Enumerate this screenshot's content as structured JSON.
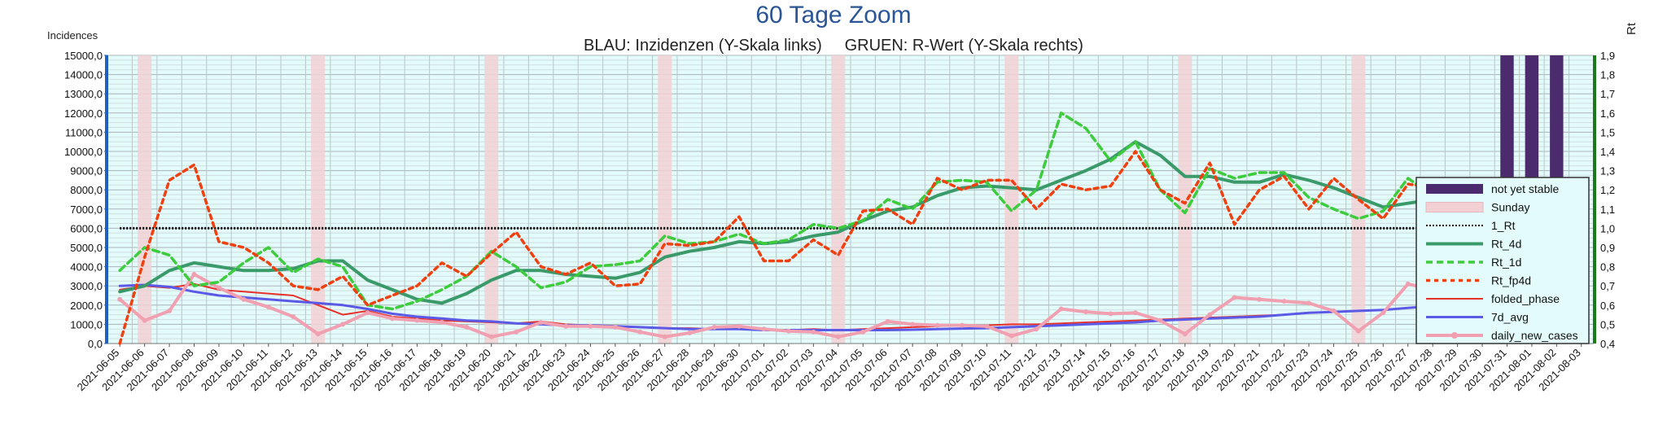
{
  "chart_data": {
    "type": "line",
    "title": "60 Tage Zoom",
    "subtitle": "BLAU: Inzidenzen (Y-Skala links)     GRUEN: R-Wert (Y-Skala rechts)",
    "ylabel_left": "Incidences",
    "ylabel_right": "Rt",
    "ylim_left": [
      0,
      15000
    ],
    "ylim_right": [
      0.4,
      1.9
    ],
    "grid": true,
    "legend_position": "bottom-right",
    "colors": {
      "plot_bg": "#e4fbfb",
      "left_axis": "#1f5fbf",
      "right_axis": "#1a7a1a",
      "title": "#2a5597",
      "not_yet_stable": "#4b2a6e",
      "sunday": "#f2d0d4"
    },
    "yticks_left": [
      "0,0",
      "1000,0",
      "2000,0",
      "3000,0",
      "4000,0",
      "5000,0",
      "6000,0",
      "7000,0",
      "8000,0",
      "9000,0",
      "10000,0",
      "11000,0",
      "12000,0",
      "13000,0",
      "14000,0",
      "15000,0"
    ],
    "yticks_right": [
      "0,4",
      "0,5",
      "0,6",
      "0,7",
      "0,8",
      "0,9",
      "1,0",
      "1,1",
      "1,2",
      "1,3",
      "1,4",
      "1,5",
      "1,6",
      "1,7",
      "1,8",
      "1,9"
    ],
    "x": [
      "2021-06-05",
      "2021-06-06",
      "2021-06-07",
      "2021-06-08",
      "2021-06-09",
      "2021-06-10",
      "2021-06-11",
      "2021-06-12",
      "2021-06-13",
      "2021-06-14",
      "2021-06-15",
      "2021-06-16",
      "2021-06-17",
      "2021-06-18",
      "2021-06-19",
      "2021-06-20",
      "2021-06-21",
      "2021-06-22",
      "2021-06-23",
      "2021-06-24",
      "2021-06-25",
      "2021-06-26",
      "2021-06-27",
      "2021-06-28",
      "2021-06-29",
      "2021-06-30",
      "2021-07-01",
      "2021-07-02",
      "2021-07-03",
      "2021-07-04",
      "2021-07-05",
      "2021-07-06",
      "2021-07-07",
      "2021-07-08",
      "2021-07-09",
      "2021-07-10",
      "2021-07-11",
      "2021-07-12",
      "2021-07-13",
      "2021-07-14",
      "2021-07-15",
      "2021-07-16",
      "2021-07-17",
      "2021-07-18",
      "2021-07-19",
      "2021-07-20",
      "2021-07-21",
      "2021-07-22",
      "2021-07-23",
      "2021-07-24",
      "2021-07-25",
      "2021-07-26",
      "2021-07-27",
      "2021-07-28",
      "2021-07-29",
      "2021-07-30",
      "2021-07-31",
      "2021-08-01",
      "2021-08-02",
      "2021-08-03"
    ],
    "sundays": [
      "2021-06-06",
      "2021-06-13",
      "2021-06-20",
      "2021-06-27",
      "2021-07-04",
      "2021-07-11",
      "2021-07-18",
      "2021-07-25",
      "2021-08-01"
    ],
    "not_yet_stable": [
      "2021-07-31",
      "2021-08-01",
      "2021-08-02"
    ],
    "one_rt": 1.0,
    "series": [
      {
        "name": "folded_phase",
        "axis": "left",
        "color": "#e8302a",
        "dash": "",
        "width": 2,
        "values": [
          2800,
          3000,
          2900,
          3100,
          2800,
          2700,
          2600,
          2500,
          2000,
          1500,
          1700,
          1400,
          1300,
          1200,
          1150,
          1100,
          1050,
          1150,
          1000,
          950,
          900,
          850,
          800,
          800,
          750,
          750,
          700,
          700,
          750,
          700,
          750,
          800,
          850,
          900,
          950,
          950,
          1000,
          1000,
          1050,
          1100,
          1150,
          1200,
          1250,
          1300,
          1350,
          1400,
          1450,
          1500,
          1600,
          1650,
          1700,
          1750,
          1850,
          1950,
          2050,
          2100,
          2150,
          2200,
          2200,
          2250
        ]
      },
      {
        "name": "7d_avg",
        "axis": "left",
        "color": "#5a5ae6",
        "dash": "",
        "width": 3,
        "values": [
          3000,
          3050,
          2950,
          2700,
          2500,
          2400,
          2300,
          2200,
          2100,
          2000,
          1800,
          1550,
          1400,
          1300,
          1200,
          1150,
          1050,
          1000,
          950,
          950,
          900,
          850,
          800,
          750,
          750,
          750,
          700,
          700,
          700,
          700,
          700,
          700,
          720,
          750,
          780,
          800,
          850,
          900,
          950,
          1000,
          1050,
          1100,
          1200,
          1250,
          1300,
          1350,
          1400,
          1500,
          1600,
          1650,
          1700,
          1750,
          1850,
          1950,
          2000,
          2050,
          2100,
          2150,
          2150,
          2200
        ]
      },
      {
        "name": "daily_new_cases",
        "axis": "left",
        "color": "#f0a0b0",
        "dash": "",
        "width": 4,
        "markers": true,
        "values": [
          2300,
          1200,
          1700,
          3600,
          2900,
          2300,
          1900,
          1400,
          500,
          1000,
          1600,
          1300,
          1200,
          1100,
          850,
          350,
          600,
          1100,
          900,
          900,
          850,
          600,
          350,
          550,
          850,
          900,
          750,
          650,
          600,
          350,
          600,
          1150,
          1000,
          950,
          950,
          900,
          400,
          750,
          1800,
          1650,
          1550,
          1600,
          1200,
          500,
          1500,
          2400,
          2300,
          2200,
          2100,
          1700,
          650,
          1600,
          3100,
          2800,
          2600,
          2500,
          1900,
          700,
          1800,
          2850
        ]
      },
      {
        "name": "Rt_4d",
        "axis": "right",
        "color": "#3a9a6a",
        "dash": "",
        "width": 4,
        "values": [
          0.67,
          0.7,
          0.78,
          0.82,
          0.8,
          0.78,
          0.78,
          0.79,
          0.83,
          0.83,
          0.73,
          0.68,
          0.63,
          0.61,
          0.66,
          0.73,
          0.78,
          0.78,
          0.76,
          0.75,
          0.74,
          0.77,
          0.85,
          0.88,
          0.9,
          0.93,
          0.92,
          0.93,
          0.96,
          0.98,
          1.04,
          1.09,
          1.11,
          1.17,
          1.21,
          1.22,
          1.21,
          1.2,
          1.25,
          1.3,
          1.36,
          1.45,
          1.38,
          1.27,
          1.27,
          1.24,
          1.24,
          1.28,
          1.25,
          1.21,
          1.16,
          1.11,
          1.13,
          1.15,
          1.17,
          1.18,
          1.15,
          1.1,
          1.09,
          1.04
        ]
      },
      {
        "name": "Rt_1d",
        "axis": "right",
        "color": "#3ccc3c",
        "dash": "8,5",
        "width": 3.5,
        "values": [
          0.78,
          0.9,
          0.86,
          0.7,
          0.72,
          0.82,
          0.9,
          0.77,
          0.84,
          0.8,
          0.6,
          0.58,
          0.62,
          0.68,
          0.75,
          0.88,
          0.8,
          0.69,
          0.72,
          0.8,
          0.81,
          0.83,
          0.96,
          0.92,
          0.93,
          0.97,
          0.92,
          0.94,
          1.02,
          1.0,
          1.04,
          1.15,
          1.1,
          1.24,
          1.25,
          1.24,
          1.09,
          1.2,
          1.6,
          1.52,
          1.35,
          1.45,
          1.2,
          1.08,
          1.31,
          1.26,
          1.29,
          1.29,
          1.16,
          1.1,
          1.05,
          1.09,
          1.26,
          1.17,
          1.13,
          1.12,
          1.1,
          1.06,
          1.08,
          0.97
        ]
      },
      {
        "name": "Rt_fp4d",
        "axis": "right",
        "color": "#f04010",
        "dash": "5,5",
        "width": 3.5,
        "values": [
          0.4,
          0.85,
          1.25,
          1.33,
          0.93,
          0.9,
          0.82,
          0.7,
          0.68,
          0.75,
          0.6,
          0.65,
          0.7,
          0.82,
          0.75,
          0.87,
          0.98,
          0.8,
          0.76,
          0.82,
          0.7,
          0.71,
          0.92,
          0.91,
          0.93,
          1.06,
          0.83,
          0.83,
          0.94,
          0.86,
          1.09,
          1.1,
          1.02,
          1.26,
          1.2,
          1.25,
          1.25,
          1.1,
          1.23,
          1.2,
          1.22,
          1.4,
          1.2,
          1.13,
          1.34,
          1.02,
          1.2,
          1.27,
          1.1,
          1.26,
          1.15,
          1.05,
          1.23,
          1.21,
          1.18,
          1.26,
          1.12,
          1.1,
          1.08,
          0.93
        ]
      },
      {
        "name": "1_Rt",
        "axis": "right",
        "color": "#000000",
        "dash": "2,2",
        "width": 2,
        "constant": 1.0
      }
    ],
    "legend": [
      "not yet stable",
      "Sunday",
      "1_Rt",
      "Rt_4d",
      "Rt_1d",
      "Rt_fp4d",
      "folded_phase",
      "7d_avg",
      "daily_new_cases"
    ]
  }
}
